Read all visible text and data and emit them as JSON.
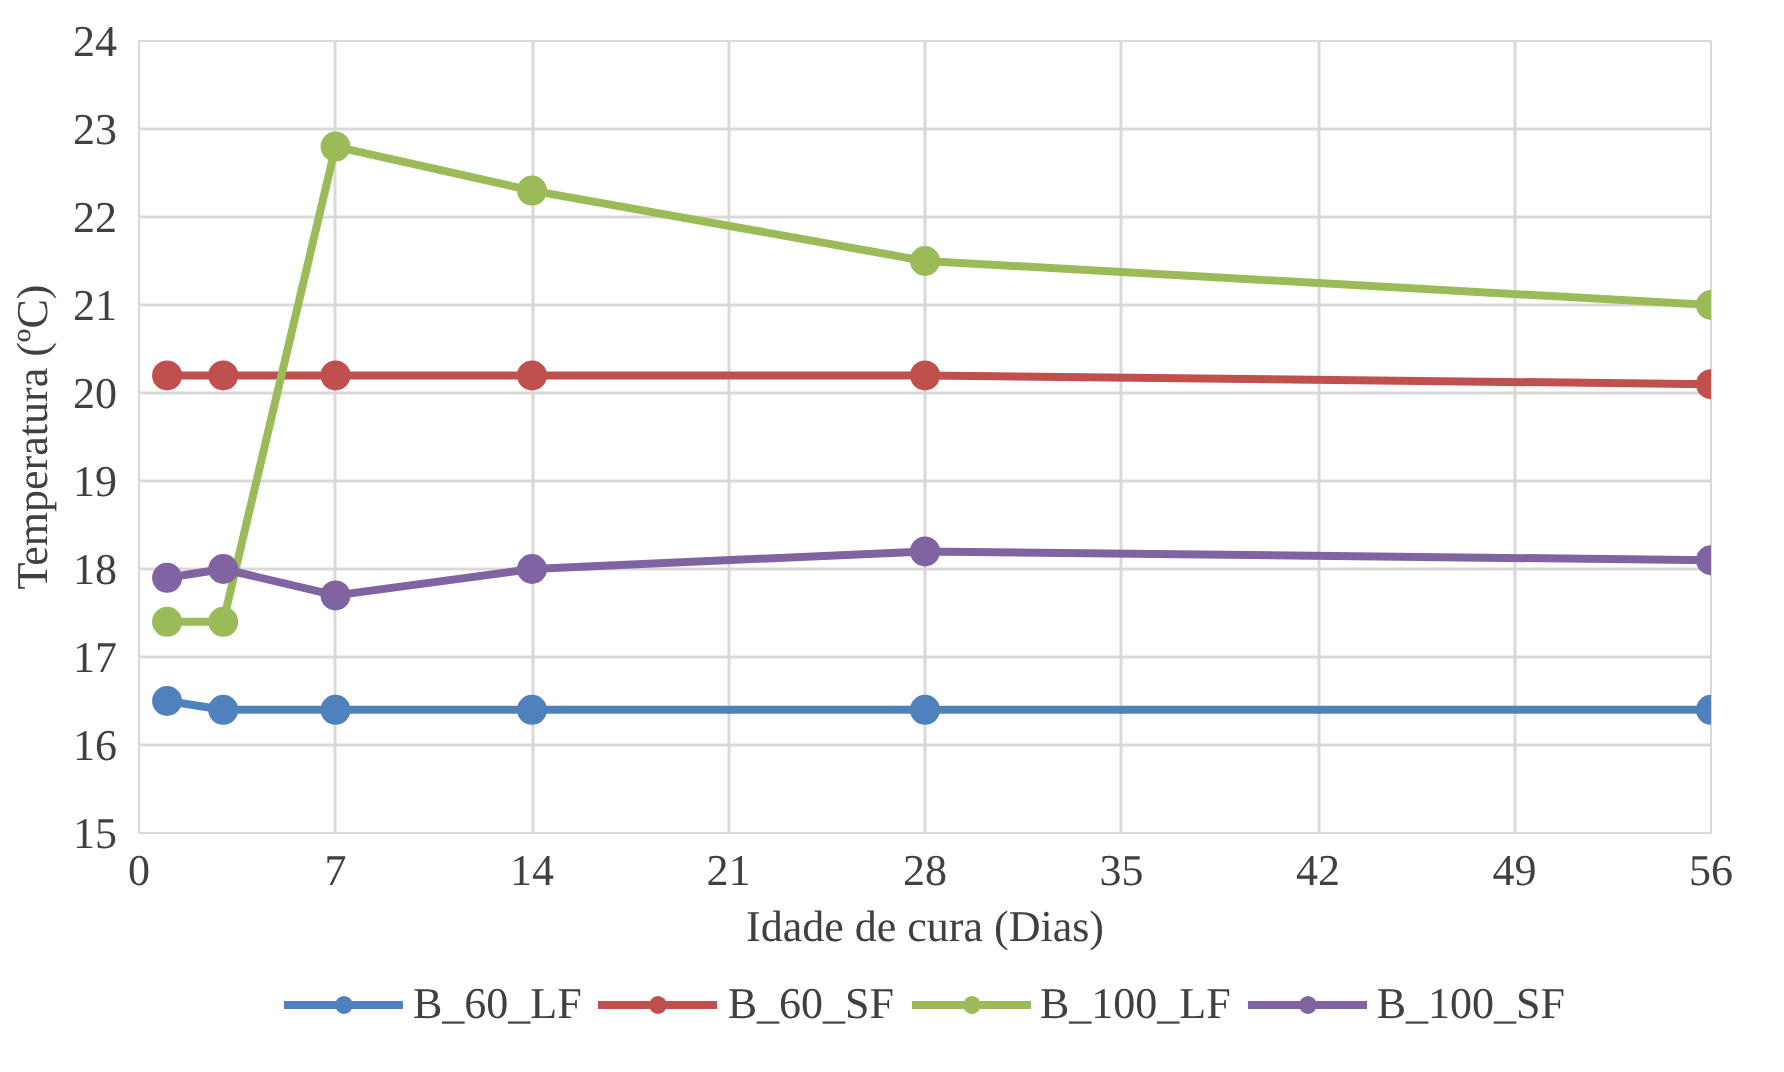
{
  "chart_data": {
    "type": "line",
    "xlabel": "Idade de cura (Dias)",
    "ylabel": "Temperatura (ºC)",
    "x": [
      1,
      3,
      7,
      14,
      28,
      56
    ],
    "xlim": [
      0,
      56
    ],
    "xticks": [
      0,
      7,
      14,
      21,
      28,
      35,
      42,
      49,
      56
    ],
    "ylim": [
      15,
      24
    ],
    "yticks": [
      15,
      16,
      17,
      18,
      19,
      20,
      21,
      22,
      23,
      24
    ],
    "grid": true,
    "legend": "bottom",
    "marker": "circle",
    "line_style": "solid",
    "series": [
      {
        "name": "B_60_LF",
        "color": "#4f81bd",
        "values": [
          16.5,
          16.4,
          16.4,
          16.4,
          16.4,
          16.4
        ]
      },
      {
        "name": "B_60_SF",
        "color": "#c0504d",
        "values": [
          20.2,
          20.2,
          20.2,
          20.2,
          20.2,
          20.1
        ]
      },
      {
        "name": "B_100_LF",
        "color": "#9bbb59",
        "values": [
          17.4,
          17.4,
          22.8,
          22.3,
          21.5,
          21.0
        ]
      },
      {
        "name": "B_100_SF",
        "color": "#8064a2",
        "values": [
          17.9,
          18.0,
          17.7,
          18.0,
          18.2,
          18.1
        ]
      }
    ]
  }
}
